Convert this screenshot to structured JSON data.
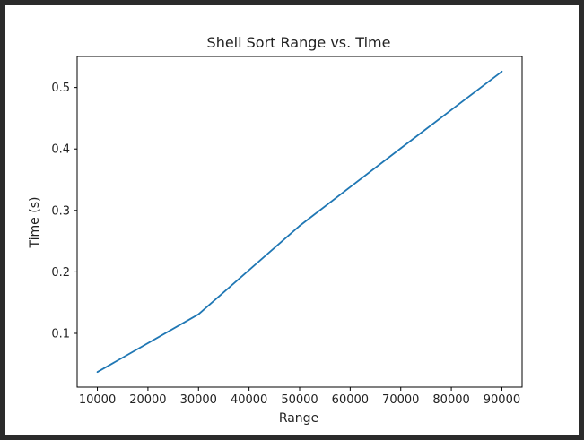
{
  "chart_data": {
    "type": "line",
    "title": "Shell Sort Range vs. Time",
    "xlabel": "Range",
    "ylabel": "Time (s)",
    "x": [
      10000,
      30000,
      50000,
      70000,
      90000
    ],
    "series": [
      {
        "values": [
          0.037,
          0.131,
          0.275,
          0.401,
          0.526
        ]
      }
    ],
    "xlim": [
      6000,
      94000
    ],
    "ylim": [
      0.0125,
      0.5505
    ],
    "xticks": [
      10000,
      20000,
      30000,
      40000,
      50000,
      60000,
      70000,
      80000,
      90000
    ],
    "yticks": [
      0.1,
      0.2,
      0.3,
      0.4,
      0.5
    ],
    "grid": false,
    "line_color": "#1f77b4"
  }
}
